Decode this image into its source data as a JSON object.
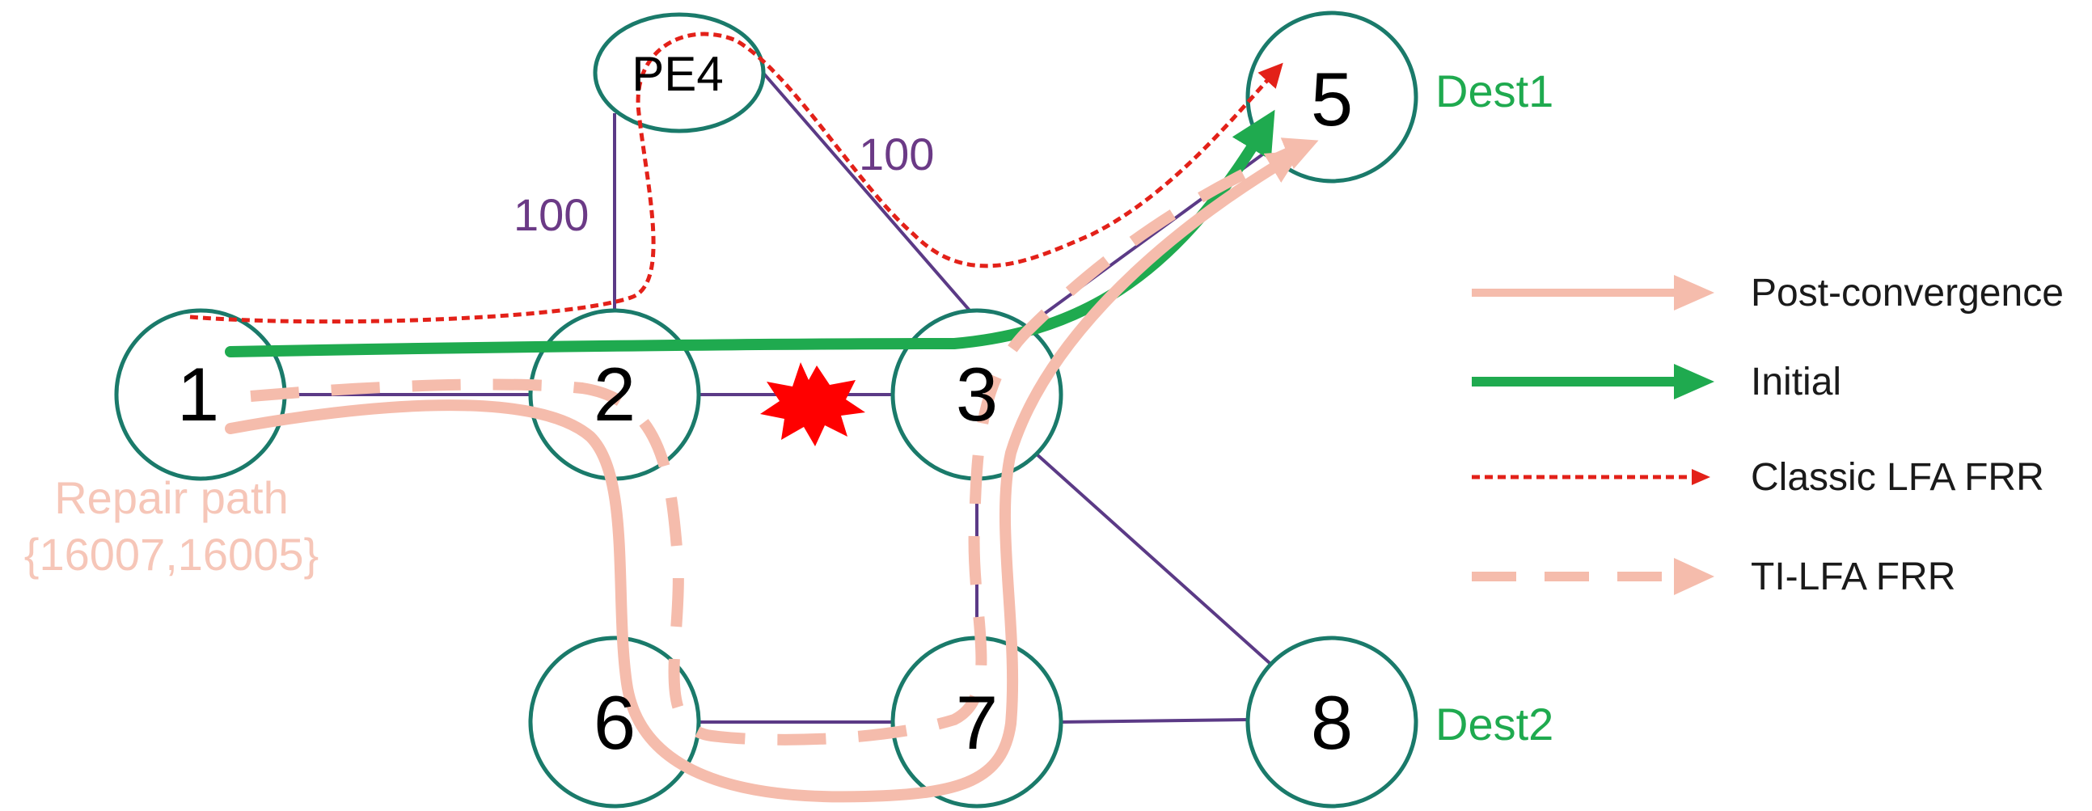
{
  "nodes": {
    "n1": "1",
    "n2": "2",
    "n3": "3",
    "n5": "5",
    "n6": "6",
    "n7": "7",
    "n8": "8",
    "pe4": "PE4"
  },
  "destinations": {
    "dest1": "Dest1",
    "dest2": "Dest2"
  },
  "link_costs": {
    "pe4_to_2": "100",
    "pe4_to_3": "100"
  },
  "repair_path": {
    "label": "Repair path",
    "segments": "{16007,16005}"
  },
  "legend": {
    "post_convergence": "Post-convergence",
    "initial": "Initial",
    "classic_lfa": "Classic LFA FRR",
    "ti_lfa": "TI-LFA FRR"
  },
  "colors": {
    "node_border": "#1a7a6a",
    "link": "#5b3a86",
    "initial_path": "#1faa4f",
    "classic_lfa_path": "#e32119",
    "post_convergence_path": "#f5bcac",
    "ti_lfa_path": "#f5bcac",
    "destination_text": "#1faa4f",
    "cost_text": "#6b3a86",
    "repair_text": "#f6c6b8",
    "failure": "#ff0000"
  }
}
